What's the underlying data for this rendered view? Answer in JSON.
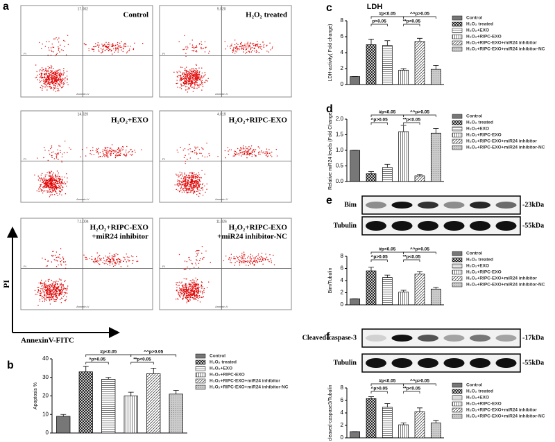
{
  "panel_labels": [
    "a",
    "b",
    "c",
    "d",
    "e",
    "f"
  ],
  "flow_cytometry": {
    "y_axis_label": "PI",
    "x_axis_label": "AnnexinV-FITC",
    "plot_x_label": "Annexin-V",
    "plot_y_label": "PI",
    "panels": [
      {
        "label": [
          "Control"
        ],
        "quadrant_value": "17.002"
      },
      {
        "label": [
          "H₂O₂ treated"
        ],
        "quadrant_value": "5.020"
      },
      {
        "label": [
          "H₂O₂+EXO"
        ],
        "quadrant_value": "14.029"
      },
      {
        "label": [
          "H₂O₂+RIPC-EXO"
        ],
        "quadrant_value": "4.019"
      },
      {
        "label": [
          "H₂O₂+RIPC-EXO",
          "+miR24 inhibitor"
        ],
        "quadrant_value": "7.1.004"
      },
      {
        "label": [
          "H₂O₂+RIPC-EXO",
          "+miR24 inhibitor-NC"
        ],
        "quadrant_value": "11.026"
      }
    ]
  },
  "blots": [
    {
      "rows": [
        {
          "label": "Bim",
          "size": "-23kDa"
        },
        {
          "label": "Tubulin",
          "size": "-55kDa"
        }
      ]
    },
    {
      "rows": [
        {
          "label": "Cleaved-caspase-3",
          "size": "-17kDa"
        },
        {
          "label": "Tubulin",
          "size": "-55kDa"
        }
      ]
    }
  ],
  "chart_data": [
    {
      "type": "bar",
      "ylabel": "Apoptosis %",
      "categories": [
        "Control",
        "H₂O₂ treated",
        "H₂O₂+EXO",
        "H₂O₂+RIPC-EXO",
        "H₂O₂+RIPC-EXO+miR24 inhibitor",
        "H₂O₂+RIPC-EXO+miR24 inhibitor-NC"
      ],
      "values": [
        9,
        33,
        29,
        20,
        32,
        21
      ],
      "errors": [
        1,
        3,
        1,
        2,
        3,
        2
      ],
      "ylim": [
        0,
        40
      ],
      "yticks": [
        0,
        10,
        20,
        30,
        40
      ],
      "annotations": [
        "#p<0.05",
        "^p>0.05",
        "^^p>0.05",
        "**p<0.05"
      ]
    },
    {
      "type": "bar",
      "title": "LDH",
      "ylabel": "LDH-activity( Fold change)",
      "categories": [
        "Control",
        "H₂O₂ treated",
        "H₂O₂+EXO",
        "H₂O₂+RIPC-EXO",
        "H₂O₂+RIPC-EXO+miR24 inhibitor",
        "H₂O₂+RIPC-EXO+miR24 inhibitor-NC"
      ],
      "values": [
        1,
        5,
        4.9,
        1.8,
        5.4,
        1.9
      ],
      "errors": [
        0,
        0.7,
        0.6,
        0.2,
        0.4,
        0.5
      ],
      "ylim": [
        0,
        8
      ],
      "yticks": [
        0,
        2,
        4,
        6,
        8
      ],
      "annotations": [
        "#p<0.05",
        "p>0.05",
        "^^p>0.05",
        "**p<0.05"
      ]
    },
    {
      "type": "bar",
      "ylabel": "Relative miR24 levels (Fold Change)",
      "categories": [
        "Control",
        "H₂O₂ treated",
        "H₂O₂+EXO",
        "H₂O₂+RIPC-EXO",
        "H₂O₂+RIPC-EXO+miR24 inhibitor",
        "H₂O₂+RIPC-EXO+miR24 inhibitor-NC"
      ],
      "values": [
        1,
        0.25,
        0.45,
        1.6,
        0.18,
        1.55
      ],
      "errors": [
        0,
        0.07,
        0.1,
        0.2,
        0.05,
        0.15
      ],
      "ylim": [
        0,
        2
      ],
      "yticks": [
        {
          "value": 0,
          "label": "0.0"
        },
        0.5,
        {
          "value": 1,
          "label": "1.0"
        },
        1.5,
        {
          "value": 2,
          "label": "2.0"
        }
      ],
      "annotations": [
        "#p<0.05",
        "^p>0.05",
        "^^p>0.05",
        "**p<0.05"
      ]
    },
    {
      "type": "bar",
      "ylabel": "Bim/Tubulin",
      "categories": [
        "Control",
        "H₂O₂ treated",
        "H₂O₂+EXO",
        "H₂O₂+RIPC-EXO",
        "H₂O₂+RIPC-EXO+miR24 inhibitor",
        "H₂O₂+RIPC-EXO+miR24 inhibitor-NC"
      ],
      "values": [
        1,
        5.6,
        4.5,
        2.1,
        5.1,
        2.6
      ],
      "errors": [
        0,
        0.6,
        0.4,
        0.3,
        0.4,
        0.3
      ],
      "ylim": [
        0,
        8
      ],
      "yticks": [
        0,
        2,
        4,
        6,
        8
      ],
      "annotations": [
        "#p<0.05",
        "^p>0.05",
        "^^p>0.05",
        "**p<0.05"
      ]
    },
    {
      "type": "bar",
      "ylabel": "cleaved-caspase3/Tubulin",
      "categories": [
        "Control",
        "H₂O₂ treated",
        "H₂O₂+EXO",
        "H₂O₂+RIPC-EXO",
        "H₂O₂+RIPC-EXO+miR24 inhibitor",
        "H₂O₂+RIPC-EXO+miR24 inhibitor-NC"
      ],
      "values": [
        1,
        6.3,
        4.9,
        2.1,
        4.2,
        2.4
      ],
      "errors": [
        0,
        0.3,
        0.6,
        0.3,
        0.6,
        0.4
      ],
      "ylim": [
        0,
        8
      ],
      "yticks": [
        0,
        2,
        4,
        6,
        8
      ],
      "annotations": [
        "#p<0.05",
        "^p>0.05",
        "^^p>0.05",
        "**p<0.05"
      ]
    }
  ]
}
